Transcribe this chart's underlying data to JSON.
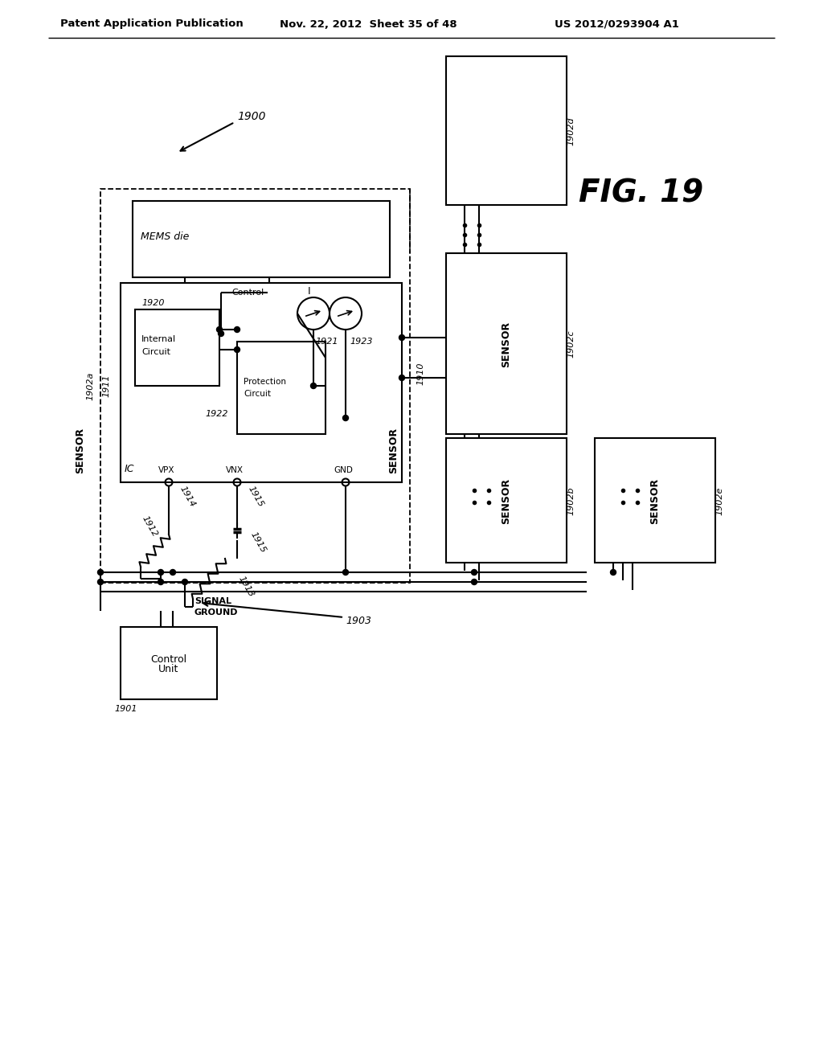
{
  "header_left": "Patent Application Publication",
  "header_center": "Nov. 22, 2012  Sheet 35 of 48",
  "header_right": "US 2012/0293904 A1",
  "bg_color": "#ffffff"
}
